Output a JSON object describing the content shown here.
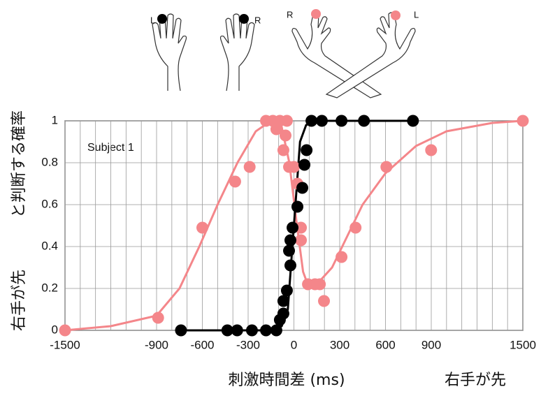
{
  "illustration": {
    "labels": [
      "L",
      "R",
      "R",
      "L"
    ]
  },
  "chart_data": {
    "type": "scatter",
    "annotation": "Subject 1",
    "y_label_parts": [
      "右手が先",
      "と判断する確率"
    ],
    "x_label": "刺激時間差 (ms)",
    "x_label_right": "右手が先",
    "xlim": [
      -1500,
      1500
    ],
    "ylim": [
      0,
      1
    ],
    "xticks": [
      -1500,
      {
        "value": -1400,
        "label": null
      },
      {
        "value": -1300,
        "label": null
      },
      {
        "value": -1200,
        "label": null
      },
      {
        "value": -1100,
        "label": null
      },
      {
        "value": -1000,
        "label": null
      },
      -900,
      {
        "value": -800,
        "label": null
      },
      {
        "value": -700,
        "label": null
      },
      -600,
      {
        "value": -500,
        "label": null
      },
      {
        "value": -400,
        "label": null
      },
      -300,
      {
        "value": -200,
        "label": null
      },
      {
        "value": -100,
        "label": null
      },
      0,
      {
        "value": 100,
        "label": null
      },
      {
        "value": 200,
        "label": null
      },
      300,
      {
        "value": 400,
        "label": null
      },
      {
        "value": 500,
        "label": null
      },
      600,
      {
        "value": 700,
        "label": null
      },
      {
        "value": 800,
        "label": null
      },
      900,
      {
        "value": 1000,
        "label": null
      },
      {
        "value": 1100,
        "label": null
      },
      {
        "value": 1200,
        "label": null
      },
      {
        "value": 1300,
        "label": null
      },
      {
        "value": 1400,
        "label": null
      },
      1500
    ],
    "yticks": [
      0,
      0.2,
      0.4,
      0.6,
      0.8,
      1
    ],
    "grid": true,
    "series": [
      {
        "style": "line",
        "color": "#f4868a",
        "x": [
          -1500,
          -1200,
          -900,
          -750,
          -620,
          -500,
          -370,
          -250,
          -150,
          -80,
          -30,
          20,
          60,
          100,
          150,
          250,
          350,
          450,
          600,
          800,
          1000,
          1300,
          1500
        ],
        "values": [
          0,
          0.02,
          0.07,
          0.2,
          0.4,
          0.6,
          0.8,
          0.95,
          1,
          0.97,
          0.8,
          0.5,
          0.28,
          0.2,
          0.22,
          0.3,
          0.45,
          0.6,
          0.75,
          0.88,
          0.95,
          0.99,
          1
        ]
      },
      {
        "style": "line",
        "color": "#000000",
        "x": [
          -740,
          -150,
          -80,
          -40,
          0,
          40,
          80,
          150,
          780
        ],
        "values": [
          0,
          0,
          0.02,
          0.1,
          0.5,
          0.9,
          0.98,
          1,
          1
        ]
      },
      {
        "style": "markers",
        "color": "#f4868a",
        "x": [
          -1500,
          -890,
          -600,
          -385,
          -290,
          -183,
          -138,
          -92,
          -46,
          -115,
          -69,
          -55,
          -32,
          0,
          23,
          46,
          46,
          92,
          138,
          170,
          197,
          312,
          404,
          606,
          899,
          1500
        ],
        "values": [
          0,
          0.06,
          0.49,
          0.71,
          0.78,
          1,
          1,
          1,
          1,
          0.96,
          0.86,
          0.93,
          0.78,
          0.78,
          0.7,
          0.49,
          0.43,
          0.22,
          0.22,
          0.22,
          0.14,
          0.35,
          0.49,
          0.78,
          0.86,
          1
        ]
      },
      {
        "style": "markers",
        "color": "#000000",
        "x": [
          -740,
          -436,
          -372,
          -275,
          -183,
          -115,
          -92,
          -69,
          -69,
          -46,
          -32,
          -23,
          -23,
          -9,
          23,
          55,
          69,
          83,
          115,
          183,
          312,
          459,
          780
        ],
        "values": [
          0,
          0,
          0,
          0,
          0,
          0,
          0.05,
          0.08,
          0.14,
          0.19,
          0.38,
          0.31,
          0.43,
          0.49,
          0.59,
          0.68,
          0.79,
          0.86,
          1,
          1,
          1,
          1,
          1
        ]
      }
    ]
  }
}
